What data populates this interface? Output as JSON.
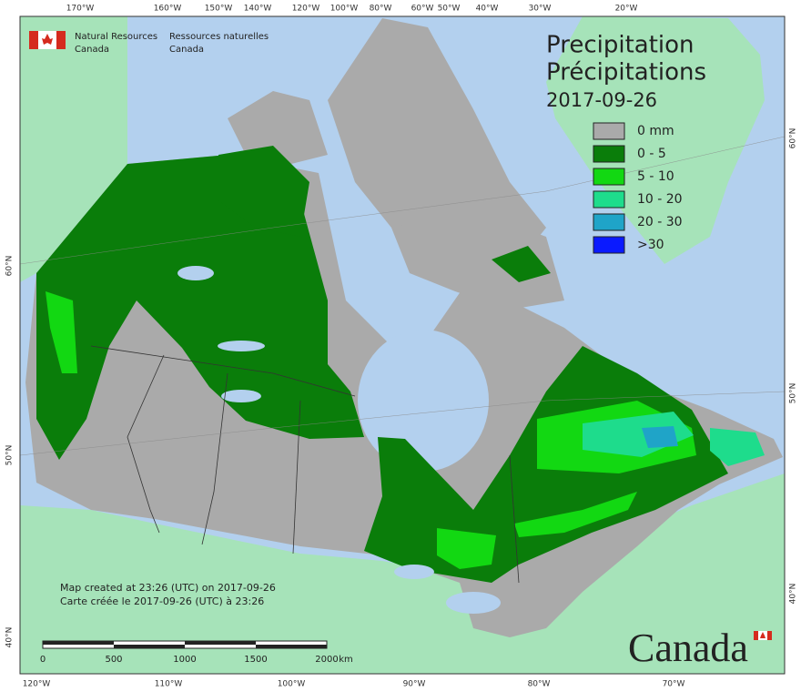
{
  "agency": {
    "english": [
      "Natural Resources",
      "Canada"
    ],
    "french": [
      "Ressources naturelles",
      "Canada"
    ]
  },
  "title": {
    "english": "Precipitation",
    "french": "Précipitations",
    "date": "2017-09-26"
  },
  "legend": [
    {
      "label": "0 mm",
      "color": "#aaaaaa"
    },
    {
      "label": "0 - 5",
      "color": "#0a7d0a"
    },
    {
      "label": "5 - 10",
      "color": "#12d812"
    },
    {
      "label": "10 - 20",
      "color": "#1edc8c"
    },
    {
      "label": "20 - 30",
      "color": "#1fa4c8"
    },
    {
      "label": ">30",
      "color": "#0a1aff"
    }
  ],
  "graticule": {
    "top": [
      "170°W",
      "160°W",
      "150°W",
      "140°W",
      "120°W",
      "100°W",
      "80°W",
      "60°W",
      "50°W",
      "40°W",
      "30°W",
      "20°W"
    ],
    "bottom": [
      "120°W",
      "110°W",
      "100°W",
      "90°W",
      "80°W",
      "70°W"
    ],
    "left": [
      "60°N",
      "50°N",
      "40°N"
    ],
    "right": [
      "60°N",
      "50°N",
      "40°N"
    ]
  },
  "scale_bar": {
    "labels": [
      "0",
      "500",
      "1000",
      "1500",
      "2000"
    ],
    "unit": "km"
  },
  "credits": [
    "Map created at 23:26 (UTC) on 2017-09-26",
    "Carte créée le 2017-09-26 (UTC) à 23:26"
  ],
  "wordmark": "Canada"
}
